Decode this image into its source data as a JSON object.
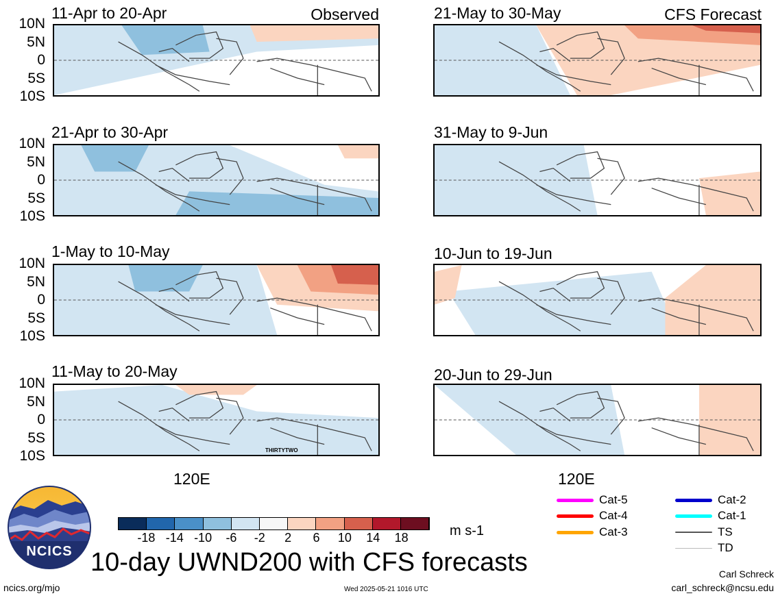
{
  "panels": [
    {
      "title": "11-Apr to 20-Apr",
      "tag": "Observed"
    },
    {
      "title": "21-Apr to 30-Apr",
      "tag": ""
    },
    {
      "title": "1-May to 10-May",
      "tag": ""
    },
    {
      "title": "11-May to 20-May",
      "tag": ""
    },
    {
      "title": "21-May to 30-May",
      "tag": "CFS Forecast"
    },
    {
      "title": "31-May to 9-Jun",
      "tag": ""
    },
    {
      "title": "10-Jun to 19-Jun",
      "tag": ""
    },
    {
      "title": "20-Jun to 29-Jun",
      "tag": ""
    }
  ],
  "lat_labels": [
    "10N",
    "5N",
    "0",
    "5S",
    "10S"
  ],
  "xtick": "120E",
  "storm_label": "THIRTYTWO",
  "colorbar": {
    "labels": [
      "-18",
      "-14",
      "-10",
      "-6",
      "-2",
      "2",
      "6",
      "10",
      "14",
      "18"
    ],
    "colors": [
      "#0a2c5a",
      "#2166ac",
      "#4a90c8",
      "#8fc0de",
      "#d2e5f2",
      "#f7f7f7",
      "#fbd5c0",
      "#f2a183",
      "#d6604d",
      "#b2182b",
      "#6d0e20"
    ],
    "units": "m s-1"
  },
  "legend": [
    {
      "label": "Cat-5",
      "color": "#ff00ff"
    },
    {
      "label": "Cat-4",
      "color": "#ff0000"
    },
    {
      "label": "Cat-3",
      "color": "#ffa500"
    },
    {
      "label": "Cat-2",
      "color": "#0000cc"
    },
    {
      "label": "Cat-1",
      "color": "#00ffff"
    },
    {
      "label": "TS",
      "color": "#555555"
    },
    {
      "label": "TD",
      "color": "#bbbbbb"
    }
  ],
  "logo_text": "NCICS",
  "main_title": "10-day UWND200 with CFS forecasts",
  "footer": {
    "left": "ncics.org/mjo",
    "center": "Wed 2025-05-21 1016 UTC",
    "right_name": "Carl Schreck",
    "right_email": "carl_schreck@ncsu.edu"
  }
}
